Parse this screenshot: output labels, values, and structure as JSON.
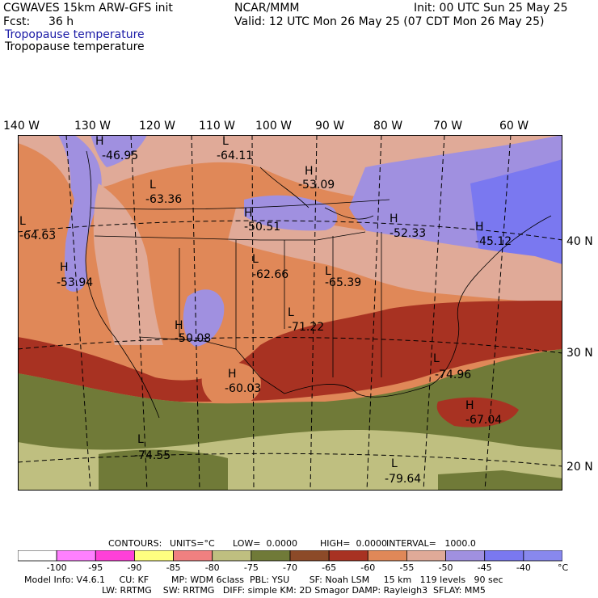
{
  "header": {
    "model": "CGWAVES 15km ARW-GFS init",
    "org": "NCAR/MMM",
    "init": "Init: 00 UTC Sun 25 May 25",
    "fcst_label": "Fcst:",
    "fcst_value": "36 h",
    "valid": "Valid: 12 UTC Mon 26 May 25 (07 CDT Mon 26 May 25)",
    "field1": "Tropopause temperature",
    "field2": "Tropopause temperature"
  },
  "longitudes": [
    "140 W",
    "130 W",
    "120 W",
    "110 W",
    "100 W",
    "90 W",
    "80 W",
    "70 W",
    "60 W"
  ],
  "latitudes": [
    "40 N",
    "30 N",
    "20 N"
  ],
  "extrema": [
    {
      "type": "H",
      "value": "-46.95"
    },
    {
      "type": "L",
      "value": "-64.11"
    },
    {
      "type": "H",
      "value": "-53.09"
    },
    {
      "type": "L",
      "value": "-63.36"
    },
    {
      "type": "L",
      "value": "-64.63"
    },
    {
      "type": "H",
      "value": "-50.51"
    },
    {
      "type": "H",
      "value": "-52.33"
    },
    {
      "type": "H",
      "value": "-45.12"
    },
    {
      "type": "H",
      "value": "-53.94"
    },
    {
      "type": "L",
      "value": "-62.66"
    },
    {
      "type": "L",
      "value": "-65.39"
    },
    {
      "type": "L",
      "value": "-71.22"
    },
    {
      "type": "H",
      "value": "-50.08"
    },
    {
      "type": "L",
      "value": "-74.96"
    },
    {
      "type": "H",
      "value": "-60.03"
    },
    {
      "type": "H",
      "value": "-67.04"
    },
    {
      "type": "L",
      "value": "-74.55"
    },
    {
      "type": "L",
      "value": "-79.64"
    }
  ],
  "contours": {
    "label": "CONTOURS:",
    "units": "UNITS=°C",
    "low": "LOW=  0.0000",
    "high": "HIGH=  0.0000",
    "interval": "INTERVAL=   1000.0"
  },
  "colorbar": {
    "ticks": [
      "-100",
      "-95",
      "-90",
      "-85",
      "-80",
      "-75",
      "-70",
      "-65",
      "-60",
      "-55",
      "-50",
      "-45",
      "-40"
    ],
    "unit": "°C",
    "colors": [
      "#ffffff",
      "#ff80ff",
      "#ff40d8",
      "#ffff80",
      "#f08080",
      "#bfbf80",
      "#707a38",
      "#8c4a28",
      "#a83222",
      "#e08858",
      "#e0aa98",
      "#a090e0",
      "#7a78f0",
      "#8888ee"
    ]
  },
  "footer": {
    "line1": "Model Info: V4.6.1     CU: KF        MP: WDM 6class  PBL: YSU       SF: Noah LSM     15 km   119 levels   90 sec",
    "line2": "LW: RRTMG    SW: RRTMG   DIFF: simple KM: 2D Smagor DAMP: Rayleigh3  SFLAY: MM5"
  }
}
